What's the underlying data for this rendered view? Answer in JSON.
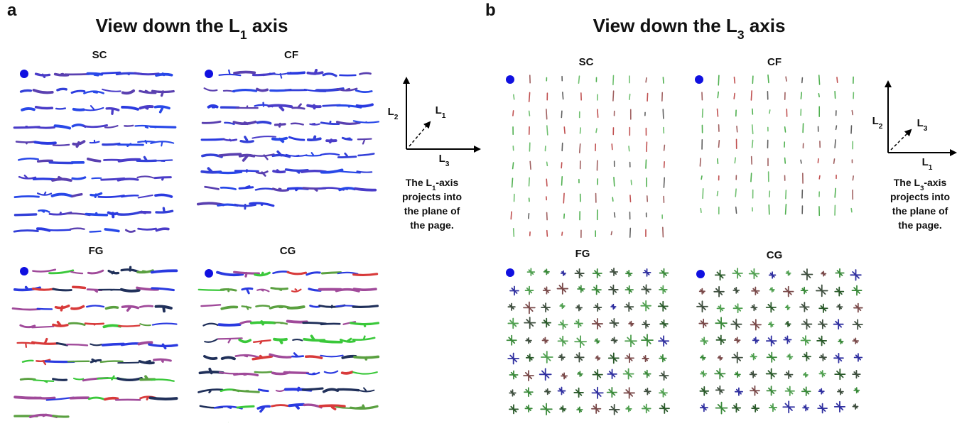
{
  "panels": [
    {
      "letter": "a",
      "title": {
        "prefix": "View down the L",
        "sub": "1",
        "suffix": " axis"
      },
      "subpanels": [
        {
          "label": "SC"
        },
        {
          "label": "CF"
        },
        {
          "label": "FG"
        },
        {
          "label": "CG"
        }
      ],
      "axes": {
        "vertical": {
          "prefix": "L",
          "sub": "2"
        },
        "diagonal": {
          "prefix": "L",
          "sub": "1"
        },
        "horizontal": {
          "prefix": "L",
          "sub": "3"
        }
      },
      "caption": {
        "first": {
          "prefix": "The L",
          "sub": "1",
          "suffix": "-axis"
        },
        "lines": [
          "projects into",
          "the plane of",
          "the page."
        ]
      }
    },
    {
      "letter": "b",
      "title": {
        "prefix": "View down the L",
        "sub": "3",
        "suffix": " axis"
      },
      "subpanels": [
        {
          "label": "SC"
        },
        {
          "label": "CF"
        },
        {
          "label": "FG"
        },
        {
          "label": "CG"
        }
      ],
      "axes": {
        "vertical": {
          "prefix": "L",
          "sub": "2"
        },
        "diagonal": {
          "prefix": "L",
          "sub": "3"
        },
        "horizontal": {
          "prefix": "L",
          "sub": "1"
        }
      },
      "caption": {
        "first": {
          "prefix": "The L",
          "sub": "3",
          "suffix": "-axis"
        },
        "lines": [
          "projects into",
          "the plane of",
          "the page."
        ]
      }
    }
  ]
}
